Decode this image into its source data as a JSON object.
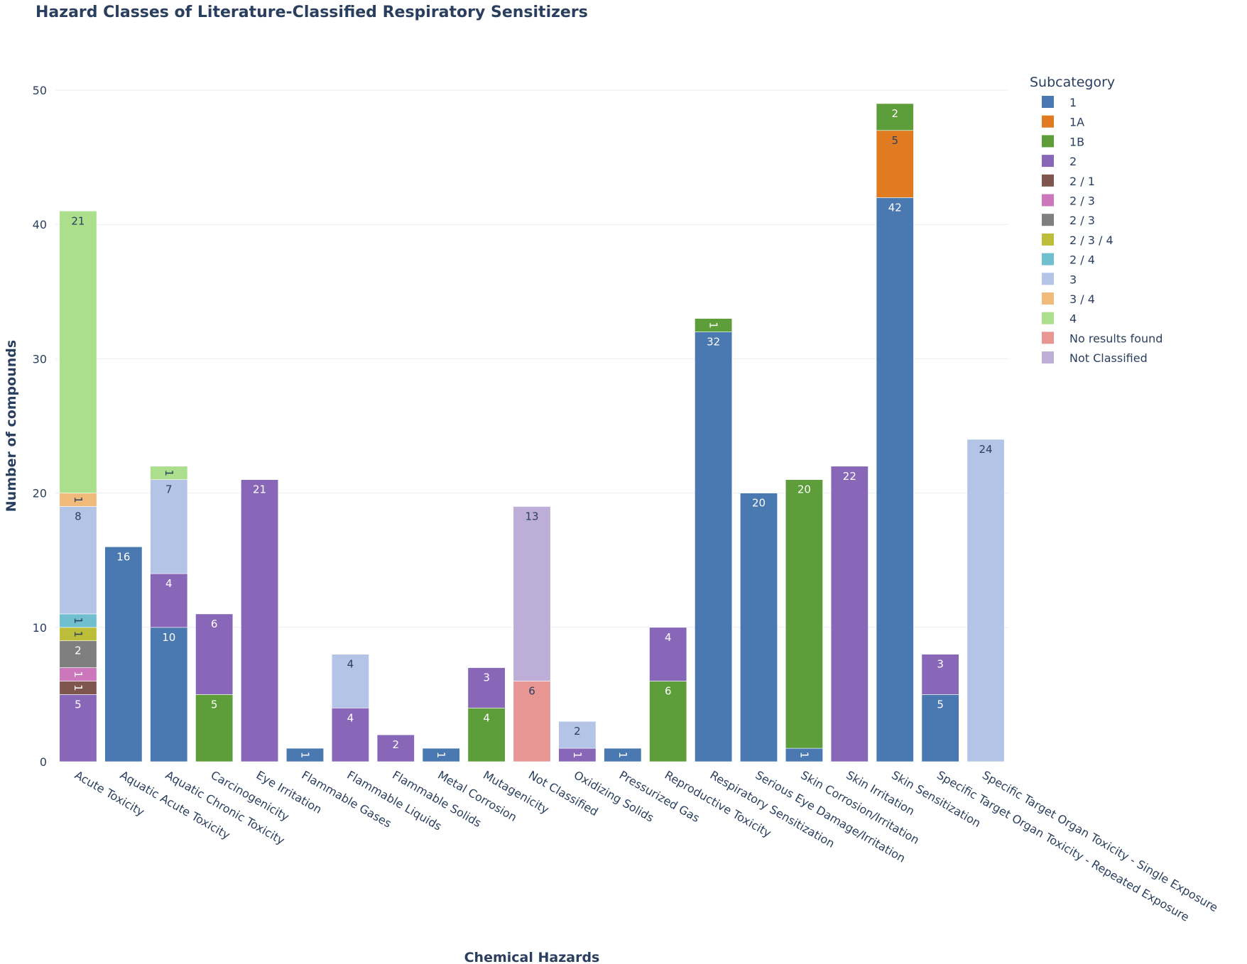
{
  "chart_data": {
    "type": "bar",
    "stacked": true,
    "title": "Hazard Classes of Literature-Classified Respiratory Sensitizers",
    "xlabel": "Chemical Hazards",
    "ylabel": "Number of compounds",
    "ylim": [
      0,
      52
    ],
    "yticks": [
      0,
      10,
      20,
      30,
      40,
      50
    ],
    "grid": true,
    "legend": {
      "title": "Subcategory",
      "placement": "right"
    },
    "categories": [
      "Acute Toxicity",
      "Aquatic Acute Toxicity",
      "Aquatic Chronic Toxicity",
      "Carcinogenicity",
      "Eye Irritation",
      "Flammable Gases",
      "Flammable Liquids",
      "Flammable Solids",
      "Metal Corrosion",
      "Mutagenicity",
      "Not Classified",
      "Oxidizing Solids",
      "Pressurized Gas",
      "Reproductive Toxicity",
      "Respiratory Sensitization",
      "Serious Eye Damage/Irritation",
      "Skin Corrosion/Irritation",
      "Skin Irritation",
      "Skin Sensitization",
      "Specific Target Organ Toxicity - Repeated Exposure",
      "Specific Target Organ Toxicity - Single Exposure"
    ],
    "series": [
      {
        "name": "1",
        "color": "#4a78b0",
        "text_color": "#ffffff",
        "values": [
          0,
          16,
          10,
          0,
          0,
          1,
          0,
          0,
          1,
          0,
          0,
          0,
          1,
          0,
          32,
          20,
          1,
          0,
          42,
          5,
          0
        ]
      },
      {
        "name": "1A",
        "color": "#e07b22",
        "text_color": "#2a3f5f",
        "values": [
          0,
          0,
          0,
          0,
          0,
          0,
          0,
          0,
          0,
          0,
          0,
          0,
          0,
          0,
          0,
          0,
          0,
          0,
          5,
          0,
          0
        ]
      },
      {
        "name": "1B",
        "color": "#5e9e3a",
        "text_color": "#ffffff",
        "values": [
          0,
          0,
          0,
          5,
          0,
          0,
          0,
          0,
          0,
          4,
          0,
          0,
          0,
          6,
          1,
          0,
          20,
          0,
          2,
          0,
          0
        ]
      },
      {
        "name": "2",
        "color": "#8866b8",
        "text_color": "#ffffff",
        "values": [
          5,
          0,
          4,
          6,
          21,
          0,
          4,
          2,
          0,
          3,
          0,
          1,
          0,
          4,
          0,
          0,
          0,
          22,
          0,
          3,
          0
        ]
      },
      {
        "name": "2 / 1",
        "color": "#7f564d",
        "text_color": "#ffffff",
        "values": [
          1,
          0,
          0,
          0,
          0,
          0,
          0,
          0,
          0,
          0,
          0,
          0,
          0,
          0,
          0,
          0,
          0,
          0,
          0,
          0,
          0
        ]
      },
      {
        "name": "2 / 3",
        "color": "#cc77bb",
        "text_color": "#ffffff",
        "values": [
          1,
          0,
          0,
          0,
          0,
          0,
          0,
          0,
          0,
          0,
          0,
          0,
          0,
          0,
          0,
          0,
          0,
          0,
          0,
          0,
          0
        ]
      },
      {
        "name": "2 / 3",
        "color": "#7f7f7f",
        "text_color": "#ffffff",
        "values": [
          2,
          0,
          0,
          0,
          0,
          0,
          0,
          0,
          0,
          0,
          0,
          0,
          0,
          0,
          0,
          0,
          0,
          0,
          0,
          0,
          0
        ]
      },
      {
        "name": "2 / 3 / 4",
        "color": "#bcbd38",
        "text_color": "#2a3f5f",
        "values": [
          1,
          0,
          0,
          0,
          0,
          0,
          0,
          0,
          0,
          0,
          0,
          0,
          0,
          0,
          0,
          0,
          0,
          0,
          0,
          0,
          0
        ]
      },
      {
        "name": "2 / 4",
        "color": "#6fbfcf",
        "text_color": "#2a3f5f",
        "values": [
          1,
          0,
          0,
          0,
          0,
          0,
          0,
          0,
          0,
          0,
          0,
          0,
          0,
          0,
          0,
          0,
          0,
          0,
          0,
          0,
          0
        ]
      },
      {
        "name": "3",
        "color": "#b4c4e6",
        "text_color": "#2a3f5f",
        "values": [
          8,
          0,
          7,
          0,
          0,
          0,
          4,
          0,
          0,
          0,
          0,
          2,
          0,
          0,
          0,
          0,
          0,
          0,
          0,
          0,
          24
        ]
      },
      {
        "name": "3 / 4",
        "color": "#efba7a",
        "text_color": "#2a3f5f",
        "values": [
          1,
          0,
          0,
          0,
          0,
          0,
          0,
          0,
          0,
          0,
          0,
          0,
          0,
          0,
          0,
          0,
          0,
          0,
          0,
          0,
          0
        ]
      },
      {
        "name": "4",
        "color": "#acdf8c",
        "text_color": "#2a3f5f",
        "values": [
          21,
          0,
          1,
          0,
          0,
          0,
          0,
          0,
          0,
          0,
          0,
          0,
          0,
          0,
          0,
          0,
          0,
          0,
          0,
          0,
          0
        ]
      },
      {
        "name": "No results found",
        "color": "#e89694",
        "text_color": "#2a3f5f",
        "values": [
          0,
          0,
          0,
          0,
          0,
          0,
          0,
          0,
          0,
          0,
          6,
          0,
          0,
          0,
          0,
          0,
          0,
          0,
          0,
          0,
          0
        ]
      },
      {
        "name": "Not Classified",
        "color": "#bcaed6",
        "text_color": "#2a3f5f",
        "values": [
          0,
          0,
          0,
          0,
          0,
          0,
          0,
          0,
          0,
          0,
          13,
          0,
          0,
          0,
          0,
          0,
          0,
          0,
          0,
          0,
          0
        ]
      }
    ]
  }
}
